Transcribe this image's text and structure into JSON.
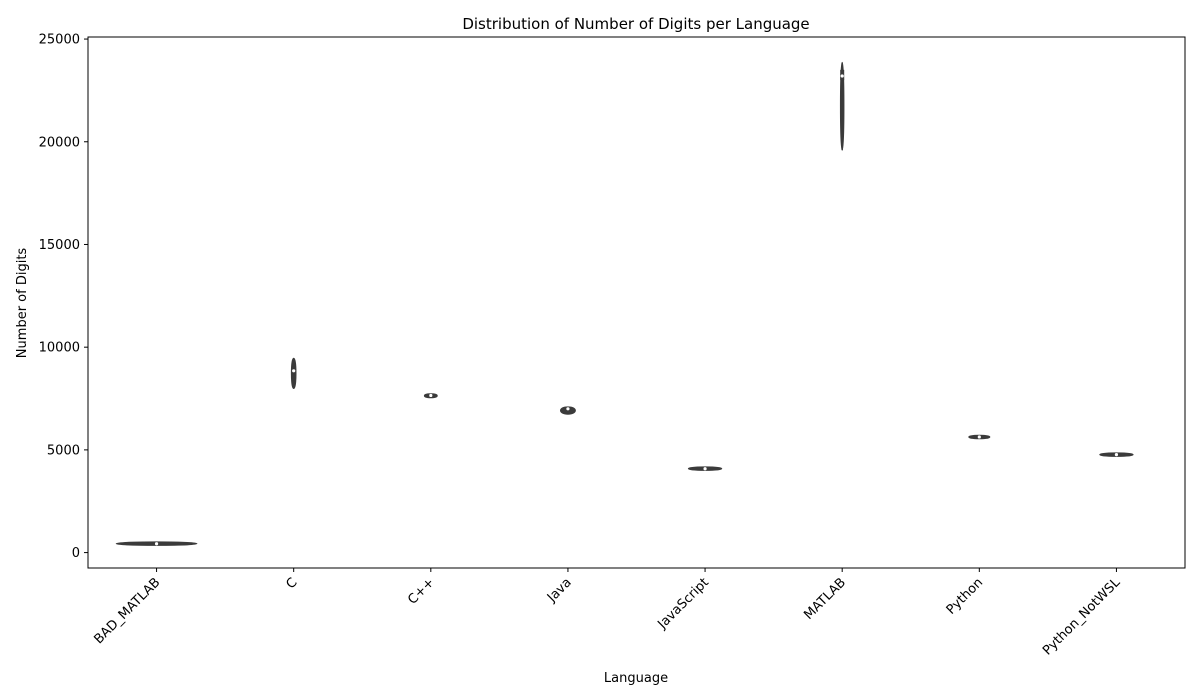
{
  "chart_data": {
    "type": "violin",
    "title": "Distribution of Number of Digits per Language",
    "xlabel": "Language",
    "ylabel": "Number of Digits",
    "ylim": [
      -750,
      25100
    ],
    "yticks": [
      0,
      5000,
      10000,
      15000,
      20000,
      25000
    ],
    "ytick_labels": [
      "0",
      "5000",
      "10000",
      "15000",
      "20000",
      "25000"
    ],
    "categories": [
      "BAD_MATLAB",
      "C",
      "C++",
      "Java",
      "JavaScript",
      "MATLAB",
      "Python",
      "Python_NotWSL"
    ],
    "series": [
      {
        "category": "BAD_MATLAB",
        "min": 400,
        "max": 470,
        "median": 430,
        "q1": 415,
        "q3": 445,
        "half_width": 0.39
      },
      {
        "category": "C",
        "min": 8000,
        "max": 9450,
        "median": 8850,
        "q1": 8700,
        "q3": 9000,
        "half_width": 0.02
      },
      {
        "category": "C++",
        "min": 7550,
        "max": 7720,
        "median": 7650,
        "q1": 7620,
        "q3": 7690,
        "half_width": 0.06
      },
      {
        "category": "Java",
        "min": 6750,
        "max": 7080,
        "median": 7000,
        "q1": 6980,
        "q3": 7030,
        "half_width": 0.07
      },
      {
        "category": "JavaScript",
        "min": 4050,
        "max": 4120,
        "median": 4080,
        "q1": 4065,
        "q3": 4095,
        "half_width": 0.16
      },
      {
        "category": "MATLAB",
        "min": 19600,
        "max": 23850,
        "median": 23200,
        "q1": 23000,
        "q3": 23500,
        "half_width": 0.01
      },
      {
        "category": "Python",
        "min": 5580,
        "max": 5680,
        "median": 5630,
        "q1": 5610,
        "q3": 5655,
        "half_width": 0.1
      },
      {
        "category": "Python_NotWSL",
        "min": 4740,
        "max": 4800,
        "median": 4770,
        "q1": 4760,
        "q3": 4785,
        "half_width": 0.16
      }
    ],
    "colors": {
      "violin": "#3b3b3b",
      "inner": "#3b3b3b"
    },
    "grid": false,
    "legend": "none"
  }
}
